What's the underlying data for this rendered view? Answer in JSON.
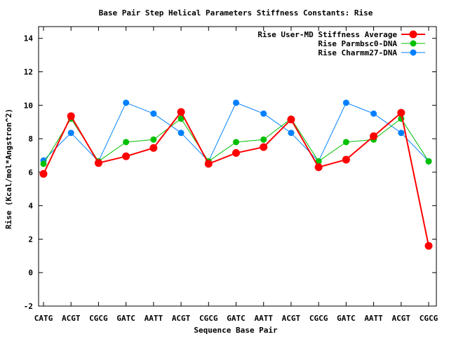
{
  "chart_data": {
    "type": "line",
    "title": "Base Pair Step Helical Parameters Stiffness Constants: Rise",
    "xlabel": "Sequence Base Pair",
    "ylabel": "Rise (Kcal/mol*Angstron^2)",
    "categories": [
      "CATG",
      "ACGT",
      "CGCG",
      "GATC",
      "AATT",
      "ACGT",
      "CGCG",
      "GATC",
      "AATT",
      "ACGT",
      "CGCG",
      "GATC",
      "AATT",
      "ACGT",
      "CGCG"
    ],
    "ylim": [
      -2,
      14.7
    ],
    "yticks": [
      -2,
      0,
      2,
      4,
      6,
      8,
      10,
      12,
      14
    ],
    "grid": false,
    "legend_position": "top-right",
    "series": [
      {
        "name": "Rise User-MD Stiffness Average",
        "color": "#ff0000",
        "values": [
          5.9,
          9.35,
          6.55,
          6.95,
          7.45,
          9.6,
          6.5,
          7.15,
          7.5,
          9.15,
          6.3,
          6.75,
          8.15,
          9.55,
          1.6
        ]
      },
      {
        "name": "Rise Parmbsc0-DNA",
        "color": "#00c000",
        "values": [
          6.5,
          9.2,
          6.65,
          7.8,
          7.95,
          9.2,
          6.65,
          7.8,
          7.95,
          9.2,
          6.65,
          7.8,
          7.95,
          9.2,
          6.65
        ]
      },
      {
        "name": "Rise Charmm27-DNA",
        "color": "#0080ff",
        "values": [
          6.7,
          8.35,
          6.65,
          10.15,
          9.5,
          8.35,
          6.65,
          10.15,
          9.5,
          8.35,
          6.65,
          10.15,
          9.5,
          8.35,
          6.65
        ]
      }
    ]
  }
}
